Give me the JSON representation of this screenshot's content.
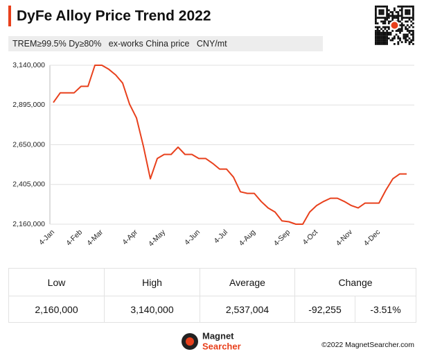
{
  "header": {
    "title": "DyFe Alloy Price Trend 2022",
    "subtitle": "TREM≥99.5% Dy≥80%   ex-works China price   CNY/mt"
  },
  "chart_data": {
    "type": "line",
    "categories": [
      "4-Jan",
      null,
      null,
      null,
      "4-Feb",
      null,
      null,
      "4-Mar",
      null,
      null,
      null,
      null,
      "4-Apr",
      null,
      null,
      null,
      "4-May",
      null,
      null,
      null,
      null,
      "4-Jun",
      null,
      null,
      null,
      "4-Jul",
      null,
      null,
      null,
      "4-Aug",
      null,
      null,
      null,
      null,
      "4-Sep",
      null,
      null,
      null,
      "4-Oct",
      null,
      null,
      null,
      null,
      "4-Nov",
      null,
      null,
      null,
      "4-Dec",
      null,
      null,
      null,
      null
    ],
    "values": [
      2910000,
      2970000,
      2970000,
      2970000,
      3010000,
      3010000,
      3140000,
      3140000,
      3115000,
      3080000,
      3030000,
      2900000,
      2815000,
      2640000,
      2440000,
      2565000,
      2590000,
      2590000,
      2635000,
      2590000,
      2590000,
      2565000,
      2565000,
      2535000,
      2500000,
      2500000,
      2450000,
      2360000,
      2350000,
      2350000,
      2300000,
      2260000,
      2235000,
      2180000,
      2175000,
      2160000,
      2160000,
      2235000,
      2275000,
      2300000,
      2320000,
      2320000,
      2300000,
      2275000,
      2260000,
      2290000,
      2290000,
      2290000,
      2370000,
      2440000,
      2470000,
      2470000
    ],
    "color": "#e8401c",
    "ylim": [
      2160000,
      3140000
    ],
    "yticks": [
      {
        "value": 2160000,
        "label": "2,160,000"
      },
      {
        "value": 2405000,
        "label": "2,405,000"
      },
      {
        "value": 2650000,
        "label": "2,650,000"
      },
      {
        "value": 2895000,
        "label": "2,895,000"
      },
      {
        "value": 3140000,
        "label": "3,140,000"
      }
    ],
    "grid": true
  },
  "table": {
    "header": [
      "Low",
      "High",
      "Average",
      "Change"
    ],
    "row": [
      "2,160,000",
      "3,140,000",
      "2,537,004",
      "-92,255",
      "-3.51%"
    ]
  },
  "footer": {
    "logo_top": "Magnet",
    "logo_bottom": "Searcher",
    "copyright": "©2022 MagnetSearcher.com"
  }
}
